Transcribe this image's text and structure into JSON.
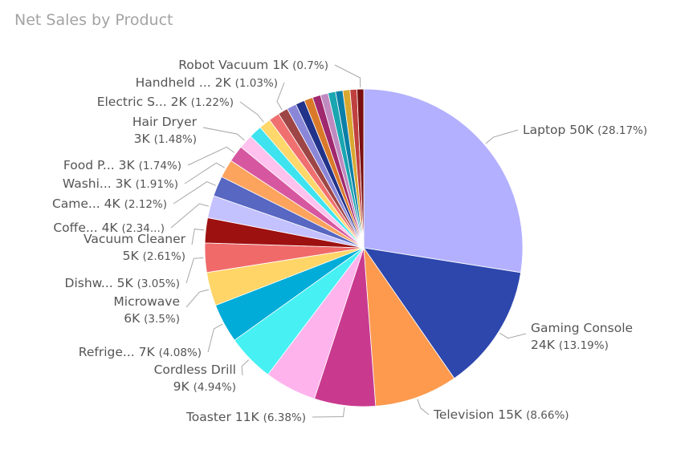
{
  "chart_data": {
    "type": "pie",
    "title": "Net Sales by Product",
    "slices": [
      {
        "label": "Laptop",
        "value_label": "50K",
        "percent_label": "(28.17%)",
        "percent": 28.17,
        "color": "#b3b0ff"
      },
      {
        "label": "Gaming Console",
        "value_label": "24K",
        "percent_label": "(13.19%)",
        "percent": 13.19,
        "color": "#2e47ad"
      },
      {
        "label": "Television",
        "value_label": "15K",
        "percent_label": "(8.66%)",
        "percent": 8.66,
        "color": "#fd9a4e"
      },
      {
        "label": "Toaster",
        "value_label": "11K",
        "percent_label": "(6.38%)",
        "percent": 6.38,
        "color": "#c93a8f"
      },
      {
        "label": "",
        "value_label": "",
        "percent_label": "",
        "percent": 5.4,
        "color": "#ffb3ec"
      },
      {
        "label": "Cordless Drill",
        "value_label": "9K",
        "percent_label": "(4.94%)",
        "percent": 4.94,
        "color": "#46f0f3"
      },
      {
        "label": "Refrige...",
        "value_label": "7K",
        "percent_label": "(4.08%)",
        "percent": 4.08,
        "color": "#02acd8"
      },
      {
        "label": "Microwave",
        "value_label": "6K",
        "percent_label": "(3.5%)",
        "percent": 3.5,
        "color": "#ffd568"
      },
      {
        "label": "Dishw...",
        "value_label": "5K",
        "percent_label": "(3.05%)",
        "percent": 3.05,
        "color": "#f06a6a"
      },
      {
        "label": "Vacuum Cleaner",
        "value_label": "5K",
        "percent_label": "(2.61%)",
        "percent": 2.61,
        "color": "#9e1111"
      },
      {
        "label": "Coffe...",
        "value_label": "4K",
        "percent_label": "(2.34...)",
        "percent": 2.34,
        "color": "#c4c1ff"
      },
      {
        "label": "Came...",
        "value_label": "4K",
        "percent_label": "(2.12%)",
        "percent": 2.12,
        "color": "#5767c2"
      },
      {
        "label": "Washi...",
        "value_label": "3K",
        "percent_label": "(1.91%)",
        "percent": 1.91,
        "color": "#fca35e"
      },
      {
        "label": "Food P...",
        "value_label": "3K",
        "percent_label": "(1.74%)",
        "percent": 1.74,
        "color": "#d6579f"
      },
      {
        "label": "Hair Dryer",
        "value_label": "3K",
        "percent_label": "(1.48%)",
        "percent": 1.48,
        "color": "#ffc2ee"
      },
      {
        "label": "",
        "value_label": "",
        "percent_label": "",
        "percent": 1.35,
        "color": "#3fe3f0"
      },
      {
        "label": "Electric S...",
        "value_label": "2K",
        "percent_label": "(1.22%)",
        "percent": 1.22,
        "color": "#ffd76a"
      },
      {
        "label": "",
        "value_label": "",
        "percent_label": "",
        "percent": 1.12,
        "color": "#f07070"
      },
      {
        "label": "Handheld ...",
        "value_label": "2K",
        "percent_label": "(1.03%)",
        "percent": 1.03,
        "color": "#9e4545"
      },
      {
        "label": "",
        "value_label": "",
        "percent_label": "",
        "percent": 1.0,
        "color": "#8a87d8"
      },
      {
        "label": "",
        "value_label": "",
        "percent_label": "",
        "percent": 0.95,
        "color": "#22338a"
      },
      {
        "label": "",
        "value_label": "",
        "percent_label": "",
        "percent": 0.9,
        "color": "#d97a2a"
      },
      {
        "label": "",
        "value_label": "",
        "percent_label": "",
        "percent": 0.85,
        "color": "#a0286e"
      },
      {
        "label": "",
        "value_label": "",
        "percent_label": "",
        "percent": 0.8,
        "color": "#c08ac0"
      },
      {
        "label": "",
        "value_label": "",
        "percent_label": "",
        "percent": 0.78,
        "color": "#1aa6b0"
      },
      {
        "label": "",
        "value_label": "",
        "percent_label": "",
        "percent": 0.76,
        "color": "#0a7fa8"
      },
      {
        "label": "",
        "value_label": "",
        "percent_label": "",
        "percent": 0.74,
        "color": "#d8a830"
      },
      {
        "label": "",
        "value_label": "",
        "percent_label": "",
        "percent": 0.72,
        "color": "#c04040"
      },
      {
        "label": "Robot Vacuum",
        "value_label": "1K",
        "percent_label": "(0.7%)",
        "percent": 0.7,
        "color": "#7a1010"
      }
    ],
    "start_angle_deg": 0,
    "direction": "clockwise",
    "legend": "none"
  }
}
